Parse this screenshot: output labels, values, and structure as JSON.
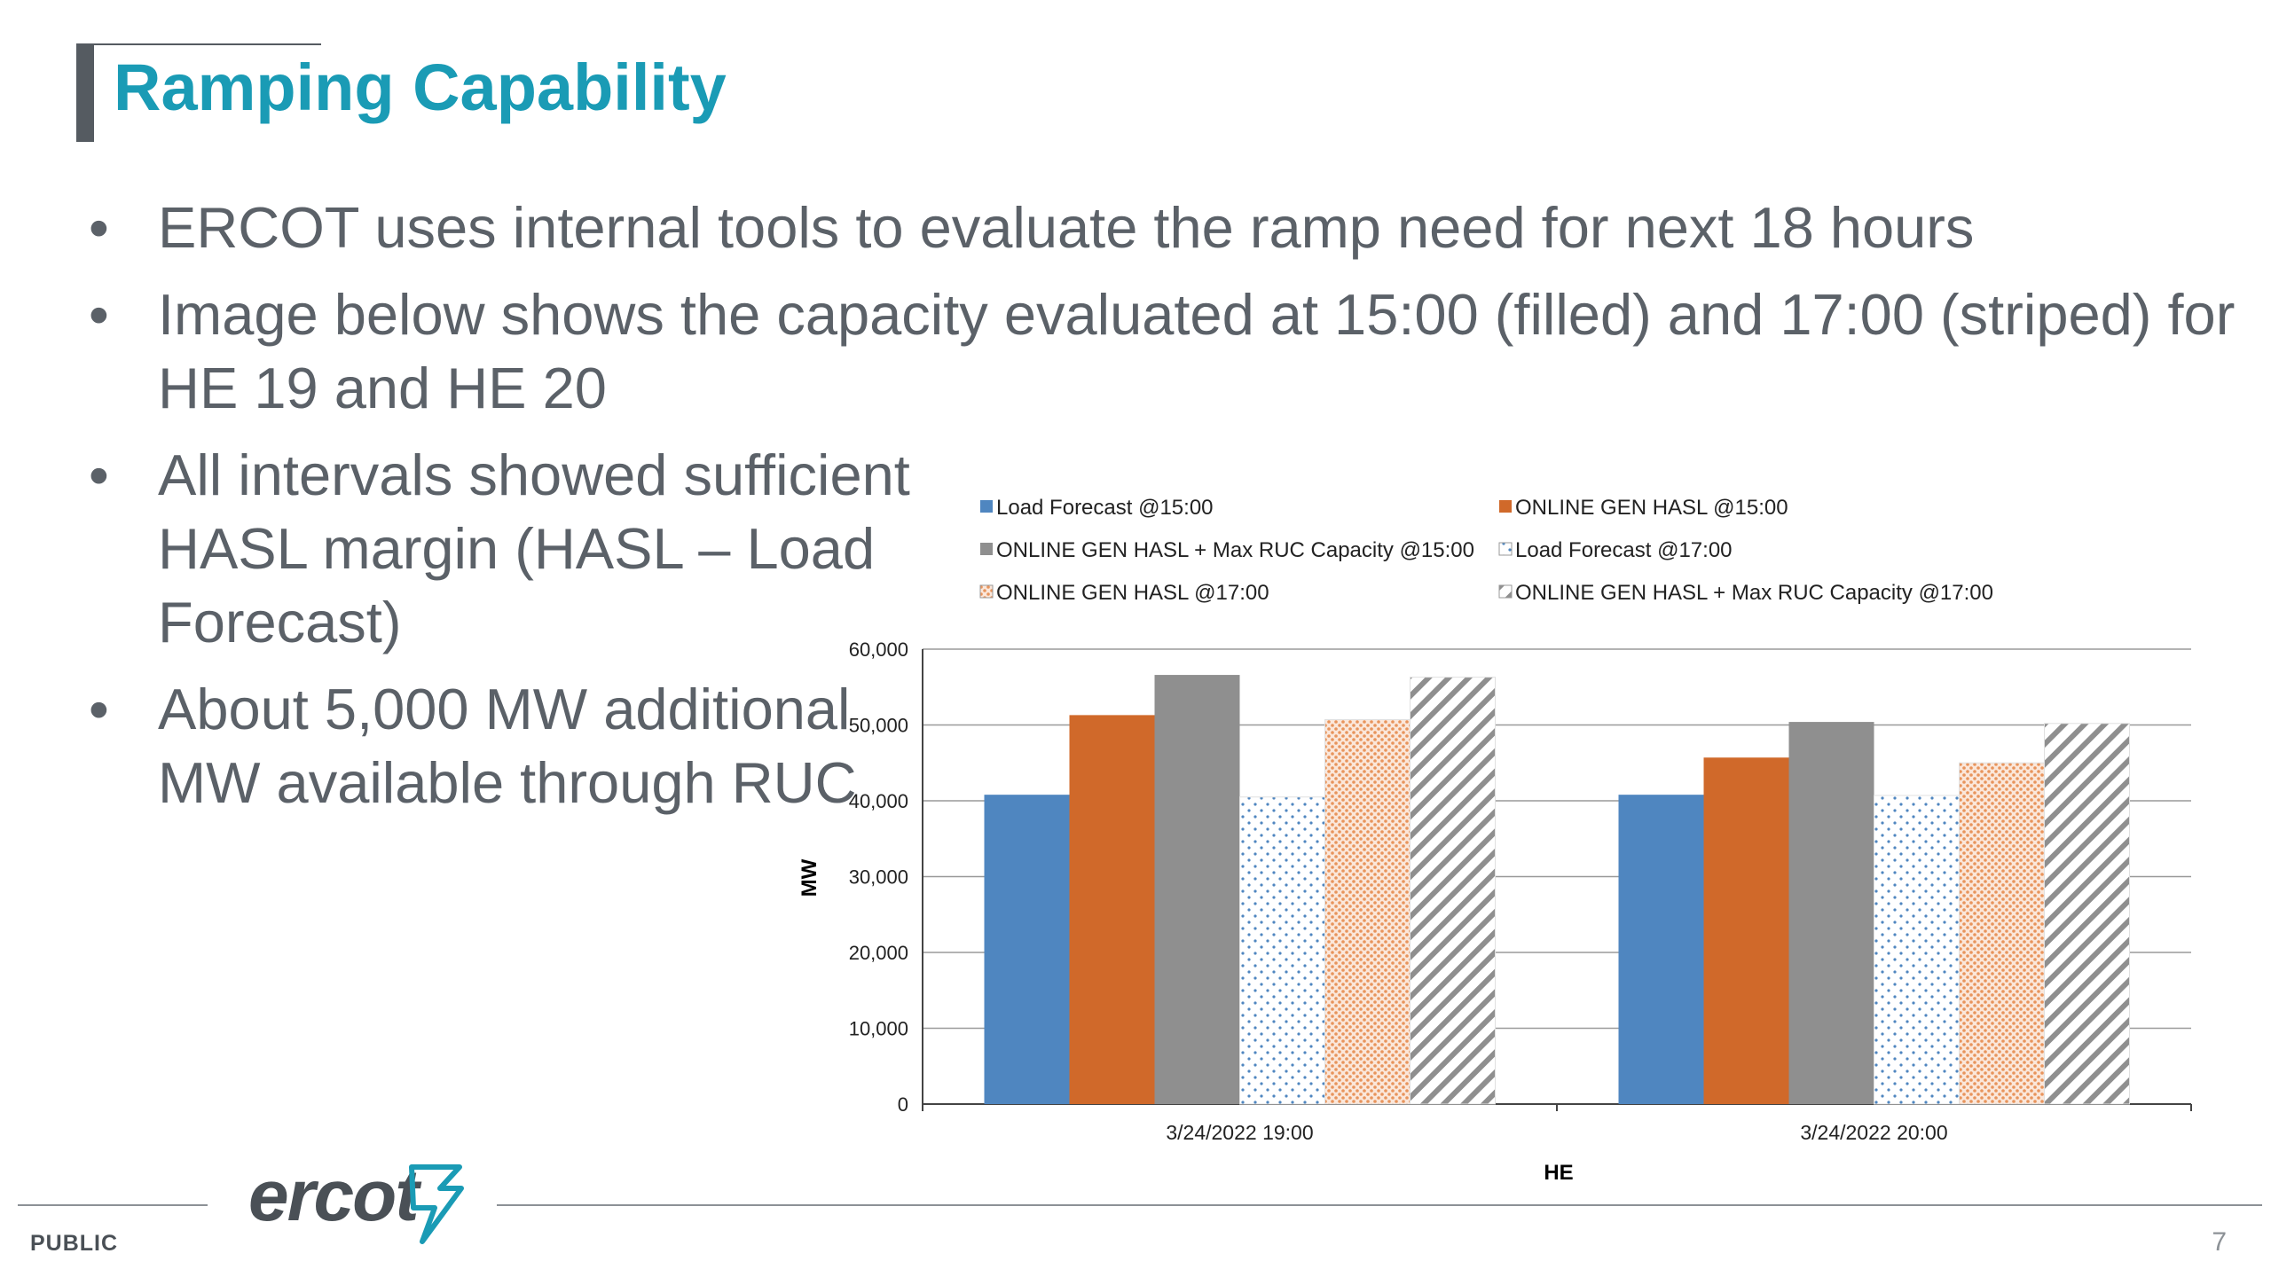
{
  "slide": {
    "title": "Ramping Capability",
    "bullets": [
      "ERCOT uses internal tools to evaluate the ramp need for next 18 hours",
      "Image below shows the capacity evaluated at 15:00 (filled) and 17:00 (striped) for HE 19 and HE 20",
      "All intervals showed sufficient HASL margin (HASL – Load Forecast)",
      "About 5,000 MW additional MW available through RUC"
    ],
    "footer_label": "PUBLIC",
    "logo_text": "ercot",
    "page_number": "7",
    "colors": {
      "title": "#1a9bb5",
      "text": "#5b6168"
    }
  },
  "chart_data": {
    "type": "bar",
    "categories": [
      "3/24/2022 19:00",
      "3/24/2022 20:00"
    ],
    "xlabel": "HE",
    "ylabel": "MW",
    "ylim": [
      0,
      60000
    ],
    "yticks": [
      "0",
      "10,000",
      "20,000",
      "30,000",
      "40,000",
      "50,000",
      "60,000"
    ],
    "grid": true,
    "legend_position": "top",
    "series": [
      {
        "name": "Load Forecast @15:00",
        "values": [
          40800,
          40800
        ],
        "color": "#4f86c0",
        "pattern": "solid"
      },
      {
        "name": "ONLINE GEN HASL  @15:00",
        "values": [
          51300,
          45700
        ],
        "color": "#d0692a",
        "pattern": "solid"
      },
      {
        "name": "ONLINE GEN HASL + Max RUC Capacity @15:00",
        "values": [
          56600,
          50400
        ],
        "color": "#8f8f8f",
        "pattern": "solid"
      },
      {
        "name": "Load Forecast @17:00",
        "values": [
          40500,
          40700
        ],
        "color": "#4f86c0",
        "pattern": "dots"
      },
      {
        "name": "ONLINE GEN HASL @17:00",
        "values": [
          50700,
          45000
        ],
        "color": "#d0692a",
        "pattern": "dense-dots"
      },
      {
        "name": "ONLINE GEN HASL + Max RUC Capacity @17:00",
        "values": [
          56300,
          50200
        ],
        "color": "#8f8f8f",
        "pattern": "stripes"
      }
    ]
  }
}
